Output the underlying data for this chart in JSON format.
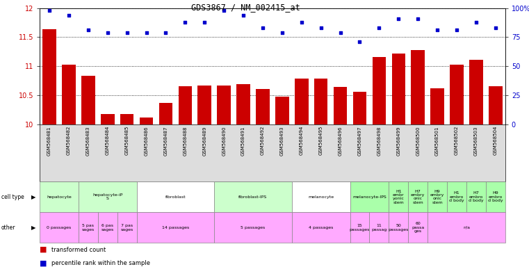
{
  "title": "GDS3867 / NM_002415_at",
  "samples": [
    "GSM568481",
    "GSM568482",
    "GSM568483",
    "GSM568484",
    "GSM568485",
    "GSM568486",
    "GSM568487",
    "GSM568488",
    "GSM568489",
    "GSM568490",
    "GSM568491",
    "GSM568492",
    "GSM568493",
    "GSM568494",
    "GSM568495",
    "GSM568496",
    "GSM568497",
    "GSM568498",
    "GSM568499",
    "GSM568500",
    "GSM568501",
    "GSM568502",
    "GSM568503",
    "GSM568504"
  ],
  "bar_values": [
    11.63,
    11.02,
    10.83,
    10.17,
    10.17,
    10.12,
    10.37,
    10.65,
    10.67,
    10.67,
    10.69,
    10.61,
    10.47,
    10.78,
    10.79,
    10.64,
    10.56,
    11.16,
    11.22,
    11.27,
    10.62,
    11.03,
    11.11,
    10.65
  ],
  "percentile_values": [
    98,
    94,
    81,
    79,
    79,
    79,
    79,
    88,
    88,
    98,
    94,
    83,
    79,
    88,
    83,
    79,
    71,
    83,
    91,
    91,
    81,
    81,
    88,
    83
  ],
  "bar_color": "#cc0000",
  "percentile_color": "#0000cc",
  "bg_color": "#ffffff",
  "tick_bg_color": "#dddddd",
  "ylim_left": [
    10,
    12
  ],
  "ylim_right": [
    0,
    100
  ],
  "yticks_left": [
    10,
    10.5,
    11,
    11.5,
    12
  ],
  "yticks_right": [
    0,
    25,
    50,
    75,
    100
  ],
  "cell_types": [
    {
      "label": "hepatocyte",
      "start": 0,
      "end": 2,
      "color": "#ccffcc"
    },
    {
      "label": "hepatocyte-iP\nS",
      "start": 2,
      "end": 5,
      "color": "#ccffcc"
    },
    {
      "label": "fibroblast",
      "start": 5,
      "end": 9,
      "color": "#ffffff"
    },
    {
      "label": "fibroblast-IPS",
      "start": 9,
      "end": 13,
      "color": "#ccffcc"
    },
    {
      "label": "melanocyte",
      "start": 13,
      "end": 16,
      "color": "#ffffff"
    },
    {
      "label": "melanocyte-IPS",
      "start": 16,
      "end": 18,
      "color": "#aaffaa"
    },
    {
      "label": "H1\nembr\nyonic\nstem",
      "start": 18,
      "end": 19,
      "color": "#aaffaa"
    },
    {
      "label": "H7\nembry\nonic\nstem",
      "start": 19,
      "end": 20,
      "color": "#aaffaa"
    },
    {
      "label": "H9\nembry\nonic\nstem",
      "start": 20,
      "end": 21,
      "color": "#aaffaa"
    },
    {
      "label": "H1\nembro\nd body",
      "start": 21,
      "end": 22,
      "color": "#aaffaa"
    },
    {
      "label": "H7\nembro\nd body",
      "start": 22,
      "end": 23,
      "color": "#aaffaa"
    },
    {
      "label": "H9\nembro\nd body",
      "start": 23,
      "end": 24,
      "color": "#aaffaa"
    }
  ],
  "other_info": [
    {
      "label": "0 passages",
      "start": 0,
      "end": 2,
      "color": "#ffaaff"
    },
    {
      "label": "5 pas\nsages",
      "start": 2,
      "end": 3,
      "color": "#ffaaff"
    },
    {
      "label": "6 pas\nsages",
      "start": 3,
      "end": 4,
      "color": "#ffaaff"
    },
    {
      "label": "7 pas\nsages",
      "start": 4,
      "end": 5,
      "color": "#ffaaff"
    },
    {
      "label": "14 passages",
      "start": 5,
      "end": 9,
      "color": "#ffaaff"
    },
    {
      "label": "5 passages",
      "start": 9,
      "end": 13,
      "color": "#ffaaff"
    },
    {
      "label": "4 passages",
      "start": 13,
      "end": 16,
      "color": "#ffaaff"
    },
    {
      "label": "15\npassages",
      "start": 16,
      "end": 17,
      "color": "#ffaaff"
    },
    {
      "label": "11\npassag",
      "start": 17,
      "end": 18,
      "color": "#ffaaff"
    },
    {
      "label": "50\npassages",
      "start": 18,
      "end": 19,
      "color": "#ffaaff"
    },
    {
      "label": "60\npassa\nges",
      "start": 19,
      "end": 20,
      "color": "#ffaaff"
    },
    {
      "label": "n/a",
      "start": 20,
      "end": 24,
      "color": "#ffaaff"
    }
  ]
}
